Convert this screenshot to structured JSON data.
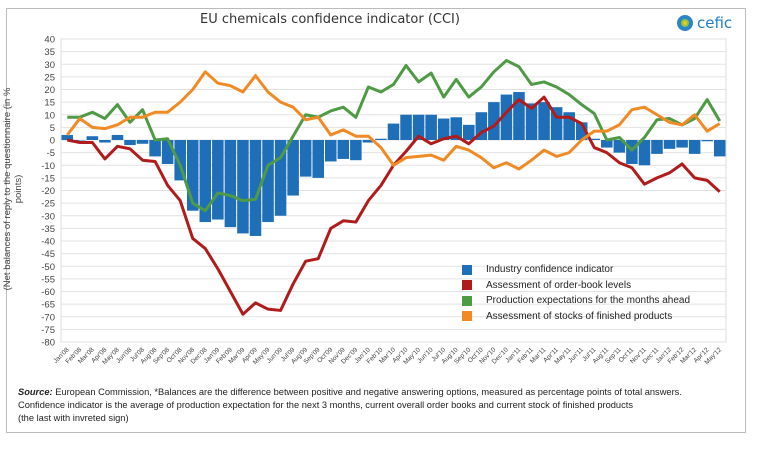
{
  "chart_data": {
    "type": "bar+line",
    "title": "EU chemicals confidence indicator (CCI)",
    "ylabel": "(Net balances of reply to the questionnaire (in % points)",
    "xlabel": "",
    "ylim": [
      -80,
      40
    ],
    "yticks": [
      40,
      35,
      30,
      25,
      20,
      15,
      10,
      5,
      0,
      -5,
      -10,
      -15,
      -20,
      -25,
      -30,
      -35,
      -40,
      -45,
      -50,
      -55,
      -60,
      -65,
      -70,
      -75,
      -80
    ],
    "grid": true,
    "legend_position": "bottom-right",
    "categories": [
      "Jan'08",
      "Feb'08",
      "Mar'08",
      "Apr'08",
      "May'08",
      "Jun'08",
      "Jul'08",
      "Aug'08",
      "Sep'08",
      "Oct'08",
      "Nov'08",
      "Dec'08",
      "Jan'09",
      "Feb'09",
      "Mar'09",
      "Apr'09",
      "May'09",
      "Jun'09",
      "Jul'09",
      "Aug'09",
      "Sep'09",
      "Oct'09",
      "Nov'09",
      "Dec'09",
      "Jan'10",
      "Feb'10",
      "Mar'10",
      "Apr'10",
      "May'10",
      "Jun'10",
      "Jul'10",
      "Aug'10",
      "Sep'10",
      "Oct'10",
      "Nov'10",
      "Dec'10",
      "Jan'11",
      "Feb'11",
      "Mar'11",
      "Apr'11",
      "May'11",
      "Jun'11",
      "Jul'11",
      "Aug'11",
      "Sep'11",
      "Oct'11",
      "Nov'11",
      "Dec'11",
      "Jan'12",
      "Feb'12",
      "Mar'12",
      "Apr'12",
      "May'12"
    ],
    "series": [
      {
        "name": "Industry confidence indicator",
        "kind": "bar",
        "color": "#1f6fb8",
        "values": [
          2,
          0,
          1.5,
          -1,
          2,
          -2,
          -1.5,
          -6.5,
          -9.5,
          -16,
          -28,
          -32.5,
          -31.5,
          -34.5,
          -37,
          -38,
          -32.5,
          -30,
          -22,
          -14.5,
          -15,
          -8.5,
          -7.5,
          -8,
          -1,
          0.5,
          6.5,
          10,
          10,
          10,
          8.5,
          9,
          6,
          11,
          15,
          18,
          19,
          14.5,
          15,
          13,
          11,
          7,
          0.5,
          -3,
          -5,
          -9.5,
          -10,
          -5.5,
          -3.5,
          -3,
          -5.5,
          -0.5,
          -6.5
        ]
      },
      {
        "name": "Assessment of order-book levels",
        "kind": "line",
        "color": "#b01c1c",
        "values": [
          0,
          -1,
          -1,
          -7.5,
          -2.5,
          -3.5,
          -8,
          -8.5,
          -18,
          -24,
          -39,
          -43,
          -51,
          -60,
          -69,
          -64.5,
          -67,
          -67.5,
          -57,
          -48,
          -47,
          -35,
          -32,
          -32.5,
          -24,
          -18,
          -10,
          -4.5,
          1.5,
          -1.5,
          0.5,
          1.5,
          -1.5,
          3,
          5.5,
          11,
          16,
          12.5,
          17,
          9,
          9,
          6.5,
          -3,
          -5,
          -9,
          -11,
          -17.5,
          -15,
          -13,
          -9.5,
          -15,
          -16,
          -20.5
        ]
      },
      {
        "name": "Production expectations for the months ahead",
        "kind": "line",
        "color": "#4e9a45",
        "values": [
          9,
          9,
          11,
          8.5,
          14,
          7,
          12,
          0,
          0.5,
          -10,
          -25,
          -28,
          -21,
          -22,
          -24,
          -23.5,
          -10,
          -7,
          1.5,
          10,
          9,
          11.5,
          13,
          9,
          21,
          19,
          22,
          29.5,
          23,
          26.5,
          17,
          24,
          17,
          21,
          27,
          31.5,
          29,
          22,
          23,
          21,
          18,
          14,
          10.5,
          0,
          1,
          -4,
          1,
          8,
          8.5,
          6,
          8.5,
          16,
          7.5
        ]
      },
      {
        "name": "Assessment of stocks of finished products",
        "kind": "line",
        "color": "#f08a24",
        "values": [
          2,
          8.5,
          5,
          4.5,
          6,
          9,
          9,
          11,
          11,
          15,
          20,
          27,
          22.5,
          21.5,
          19,
          25.5,
          19,
          15,
          13,
          8,
          9,
          2,
          4,
          1.5,
          1.5,
          -3,
          -10,
          -7,
          -6.5,
          -6,
          -8,
          -2.5,
          -4,
          -7,
          -11,
          -9,
          -11.5,
          -8,
          -4,
          -6.5,
          -5,
          0,
          3.5,
          3.5,
          6,
          12,
          13,
          10,
          7,
          6,
          10,
          3.5,
          6.5
        ]
      }
    ]
  },
  "logo": {
    "text": "cefic"
  },
  "footnote": {
    "source_label": "Source:",
    "line1": " European Commission, *Balances are the difference between positive and negative answering options, measured as percentage points of total answers.",
    "line2": "Confidence indicator is the average of production expectation for the next 3 months, current overall order books  and current stock of finished products",
    "line3": "(the last with invreted sign)"
  }
}
